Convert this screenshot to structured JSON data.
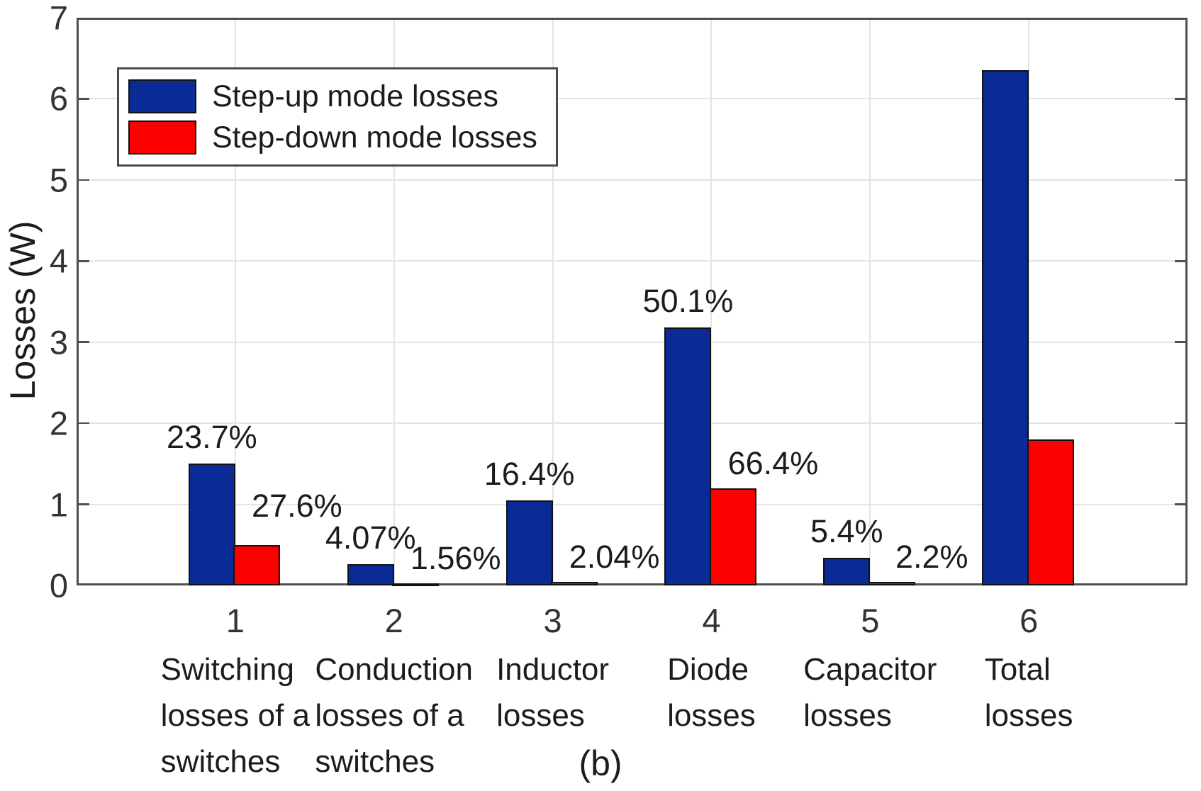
{
  "chart_data": {
    "type": "bar",
    "title": "",
    "ylabel": "Losses (W)",
    "caption": "(b)",
    "ylim": [
      0,
      7
    ],
    "yticks": [
      0,
      1,
      2,
      3,
      4,
      5,
      6,
      7
    ],
    "xlim": [
      0,
      7
    ],
    "grid": true,
    "legend_position": "top-left",
    "categories": [
      {
        "tick": "1",
        "label_lines": [
          "Switching",
          "losses of a",
          "switches"
        ]
      },
      {
        "tick": "2",
        "label_lines": [
          "Conduction",
          "losses of a",
          "switches"
        ]
      },
      {
        "tick": "3",
        "label_lines": [
          "Inductor",
          "losses"
        ]
      },
      {
        "tick": "4",
        "label_lines": [
          "Diode",
          "losses"
        ]
      },
      {
        "tick": "5",
        "label_lines": [
          "Capacitor",
          "losses"
        ]
      },
      {
        "tick": "6",
        "label_lines": [
          "Total",
          "losses"
        ]
      }
    ],
    "series": [
      {
        "name": "Step-up mode losses",
        "color": "#0a2a96",
        "values": [
          1.5,
          0.26,
          1.05,
          3.18,
          0.34,
          6.35
        ],
        "pct_labels": [
          "23.7%",
          "4.07%",
          "16.4%",
          "50.1%",
          "5.4%",
          null
        ]
      },
      {
        "name": "Step-down mode losses",
        "color": "#fc0000",
        "values": [
          0.5,
          0.03,
          0.04,
          1.2,
          0.04,
          1.8
        ],
        "pct_labels": [
          "27.6%",
          "1.56%",
          "2.04%",
          "66.4%",
          "2.2%",
          null
        ]
      }
    ],
    "colors": {
      "grid": "#e4e4e4",
      "axis": "#4f4f4f",
      "bar_edge": "#121212",
      "text": "#1c1c1c"
    }
  }
}
